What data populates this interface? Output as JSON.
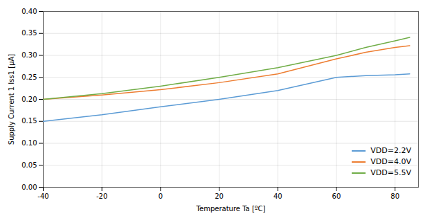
{
  "chart_data": {
    "type": "line",
    "xlabel": "Temperature Ta [ºC]",
    "ylabel": "Supply Current 1 Iss1 [μA]",
    "x": [
      -40,
      -20,
      0,
      20,
      40,
      60,
      70,
      80,
      85
    ],
    "series": [
      {
        "name": "VDD=2.2V",
        "color": "#5b9bd5",
        "values": [
          0.15,
          0.165,
          0.183,
          0.2,
          0.22,
          0.25,
          0.254,
          0.256,
          0.258
        ]
      },
      {
        "name": "VDD=4.0V",
        "color": "#ed7d31",
        "values": [
          0.2,
          0.21,
          0.222,
          0.238,
          0.258,
          0.292,
          0.307,
          0.318,
          0.322
        ]
      },
      {
        "name": "VDD=5.5V",
        "color": "#70ad47",
        "values": [
          0.2,
          0.213,
          0.23,
          0.25,
          0.272,
          0.3,
          0.318,
          0.333,
          0.341
        ]
      }
    ],
    "xlim": [
      -40,
      88
    ],
    "ylim": [
      0.0,
      0.4
    ],
    "xticks": [
      -40,
      -20,
      0,
      20,
      40,
      60,
      80
    ],
    "yticks": [
      {
        "value": 0.0,
        "label": "0.00"
      },
      {
        "value": 0.05,
        "label": "0.05"
      },
      {
        "value": 0.1,
        "label": "0.10"
      },
      {
        "value": 0.15,
        "label": "0.15"
      },
      {
        "value": 0.2,
        "label": "0.20"
      },
      {
        "value": 0.25,
        "label": "0.25"
      },
      {
        "value": 0.3,
        "label": "0.30"
      },
      {
        "value": 0.35,
        "label": "0.35"
      },
      {
        "value": 0.4,
        "label": "0.40"
      }
    ],
    "grid": true,
    "legend": "lower right"
  }
}
